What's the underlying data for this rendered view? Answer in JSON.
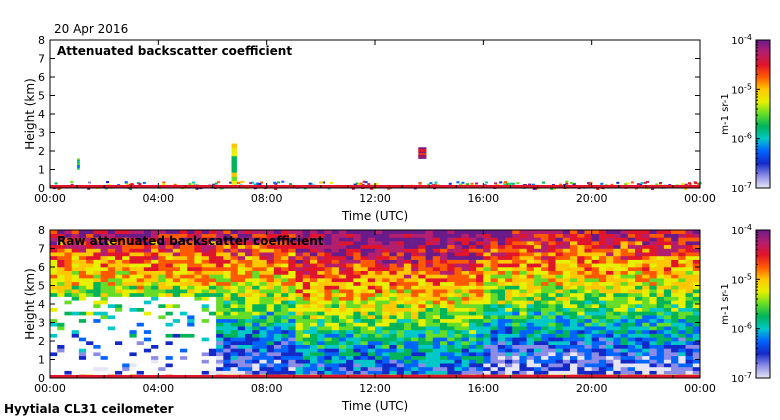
{
  "date": "20 Apr 2016",
  "footer": "Hyytiala CL31 ceilometer",
  "colorbar": {
    "ticks": [
      "10-4",
      "10-5",
      "10-6",
      "10-7"
    ],
    "unit": "m-1 sr-1",
    "colors": [
      "#6a1b8a",
      "#b41e6e",
      "#e0142b",
      "#ff5a00",
      "#ffc800",
      "#e6f000",
      "#64dc28",
      "#00b45a",
      "#00c8c8",
      "#0064ff",
      "#1428c8",
      "#8c8ce6",
      "#e6e6f5"
    ]
  },
  "chart_data": [
    {
      "type": "heatmap",
      "title": "Attenuated backscatter coefficient",
      "xlabel": "Time (UTC)",
      "ylabel": "Height (km)",
      "x_ticks": [
        "00:00",
        "04:00",
        "08:00",
        "12:00",
        "16:00",
        "20:00",
        "00:00"
      ],
      "y_ticks": [
        "0",
        "1",
        "2",
        "3",
        "4",
        "5",
        "6",
        "7",
        "8"
      ],
      "xlim": [
        0,
        24
      ],
      "ylim": [
        0,
        8
      ],
      "color_scale": "log",
      "color_range": [
        1e-07,
        0.0001
      ],
      "features": [
        {
          "desc": "surface layer",
          "time_range": [
            0,
            24
          ],
          "height_range": [
            0,
            0.4
          ],
          "level": 1e-05
        },
        {
          "desc": "thin layer",
          "time_range": [
            6.7,
            6.9
          ],
          "height_range": [
            0.2,
            2.4
          ],
          "level": 3e-06
        },
        {
          "desc": "thin layer",
          "time_range": [
            13.6,
            13.9
          ],
          "height_range": [
            1.6,
            2.2
          ],
          "level": 3e-05
        },
        {
          "desc": "thin layer",
          "time_range": [
            1.0,
            1.1
          ],
          "height_range": [
            1.0,
            1.6
          ],
          "level": 1e-06
        }
      ]
    },
    {
      "type": "heatmap",
      "title": "Raw attenuated backscatter coefficient",
      "xlabel": "Time (UTC)",
      "ylabel": "Height (km)",
      "x_ticks": [
        "00:00",
        "04:00",
        "08:00",
        "12:00",
        "16:00",
        "20:00",
        "00:00"
      ],
      "y_ticks": [
        "0",
        "1",
        "2",
        "3",
        "4",
        "5",
        "6",
        "7",
        "8"
      ],
      "xlim": [
        0,
        24
      ],
      "ylim": [
        0,
        8
      ],
      "color_scale": "log",
      "color_range": [
        1e-07,
        0.0001
      ],
      "features": [
        {
          "desc": "noise field",
          "time_range": [
            0,
            24
          ],
          "height_range": [
            0,
            8
          ],
          "level": 1e-05
        },
        {
          "desc": "low-signal gap",
          "time_range": [
            0,
            6.2
          ],
          "height_range": [
            0,
            4.5
          ],
          "level": 1e-07
        },
        {
          "desc": "surface layer",
          "time_range": [
            0,
            24
          ],
          "height_range": [
            0,
            0.3
          ],
          "level": 3e-05
        }
      ]
    }
  ]
}
